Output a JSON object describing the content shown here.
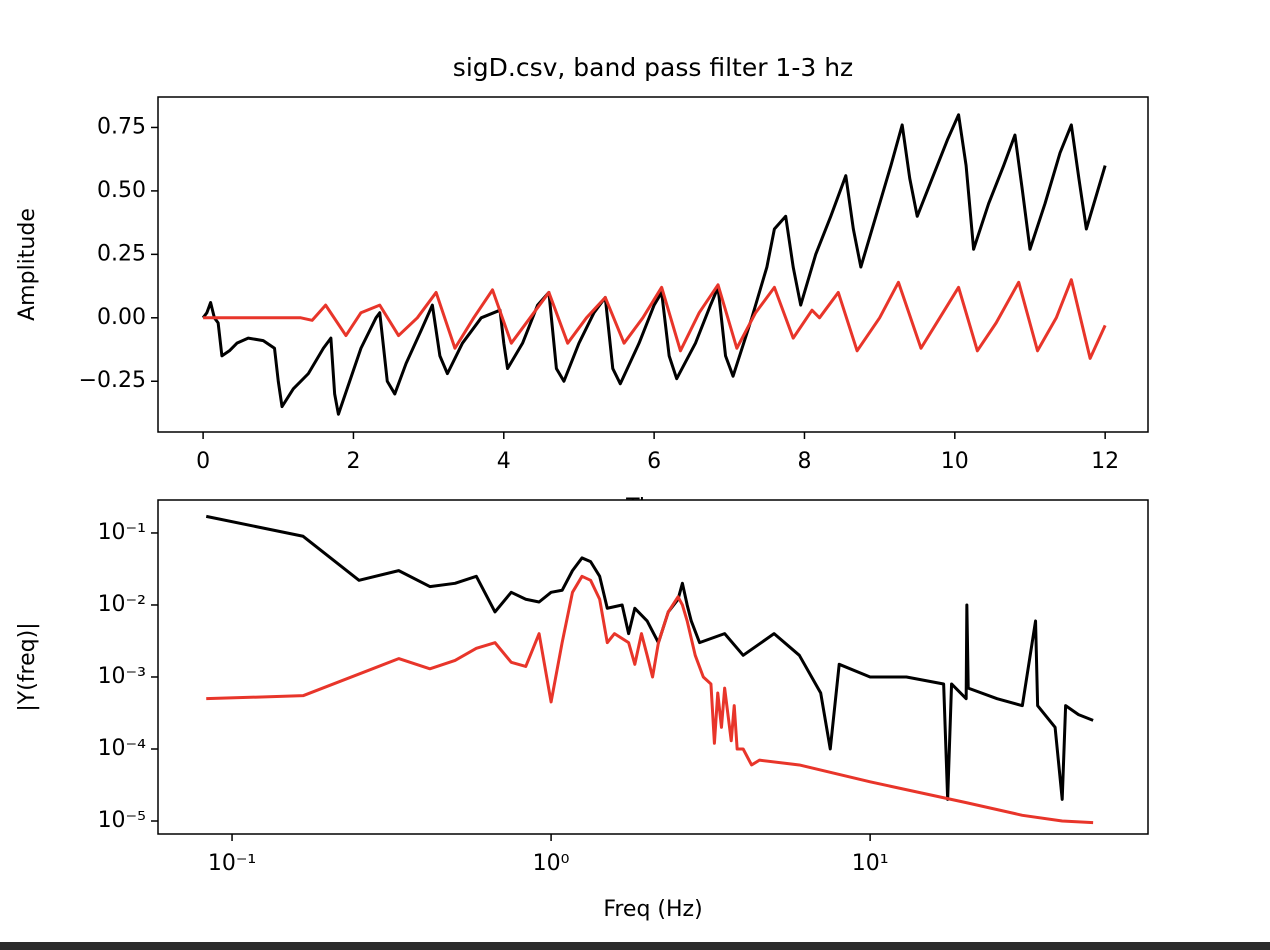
{
  "chart_data": [
    {
      "type": "line",
      "title": "sigD.csv, band pass filter 1-3 hz",
      "xlabel": "Time",
      "ylabel": "Amplitude",
      "xlim": [
        -0.6,
        12.57
      ],
      "ylim": [
        -0.45,
        0.87
      ],
      "xticks": [
        0,
        2,
        4,
        6,
        8,
        10,
        12
      ],
      "yticks": [
        {
          "value": -0.25,
          "label": "−0.25"
        },
        {
          "value": 0,
          "label": "0.00"
        },
        {
          "value": 0.25,
          "label": "0.25"
        },
        {
          "value": 0.5,
          "label": "0.50"
        },
        {
          "value": 0.75,
          "label": "0.75"
        }
      ],
      "series": [
        {
          "color": "#000000",
          "x": [
            0,
            0.05,
            0.1,
            0.15,
            0.2,
            0.25,
            0.35,
            0.45,
            0.6,
            0.8,
            0.95,
            1.0,
            1.05,
            1.2,
            1.4,
            1.6,
            1.7,
            1.75,
            1.8,
            1.95,
            2.1,
            2.3,
            2.35,
            2.45,
            2.55,
            2.7,
            2.9,
            3.05,
            3.15,
            3.25,
            3.45,
            3.7,
            3.95,
            4.0,
            4.05,
            4.25,
            4.45,
            4.6,
            4.7,
            4.8,
            5.0,
            5.2,
            5.35,
            5.45,
            5.55,
            5.8,
            6.0,
            6.1,
            6.2,
            6.3,
            6.55,
            6.75,
            6.85,
            6.95,
            7.05,
            7.3,
            7.5,
            7.6,
            7.75,
            7.85,
            7.95,
            8.15,
            8.35,
            8.55,
            8.65,
            8.75,
            8.95,
            9.15,
            9.3,
            9.4,
            9.5,
            9.7,
            9.9,
            10.05,
            10.15,
            10.25,
            10.45,
            10.65,
            10.8,
            10.9,
            11.0,
            11.2,
            11.4,
            11.55,
            11.65,
            11.75,
            11.9,
            12.0
          ],
          "values": [
            0,
            0.02,
            0.06,
            0,
            -0.02,
            -0.15,
            -0.13,
            -0.1,
            -0.08,
            -0.09,
            -0.12,
            -0.25,
            -0.35,
            -0.28,
            -0.22,
            -0.12,
            -0.08,
            -0.3,
            -0.38,
            -0.25,
            -0.12,
            0,
            0.02,
            -0.25,
            -0.3,
            -0.18,
            -0.05,
            0.05,
            -0.15,
            -0.22,
            -0.1,
            0,
            0.03,
            -0.1,
            -0.2,
            -0.1,
            0.05,
            0.1,
            -0.2,
            -0.25,
            -0.1,
            0.02,
            0.08,
            -0.2,
            -0.26,
            -0.1,
            0.05,
            0.1,
            -0.15,
            -0.24,
            -0.1,
            0.05,
            0.12,
            -0.15,
            -0.23,
            0,
            0.2,
            0.35,
            0.4,
            0.2,
            0.05,
            0.25,
            0.4,
            0.56,
            0.35,
            0.2,
            0.4,
            0.6,
            0.76,
            0.55,
            0.4,
            0.55,
            0.7,
            0.8,
            0.6,
            0.27,
            0.45,
            0.6,
            0.72,
            0.5,
            0.27,
            0.45,
            0.65,
            0.76,
            0.55,
            0.35,
            0.5,
            0.6
          ]
        },
        {
          "color": "#e8352a",
          "x": [
            0,
            1.3,
            1.45,
            1.63,
            1.9,
            2.1,
            2.35,
            2.6,
            2.85,
            3.1,
            3.35,
            3.6,
            3.85,
            4.1,
            4.35,
            4.6,
            4.85,
            5.1,
            5.35,
            5.6,
            5.85,
            6.1,
            6.35,
            6.6,
            6.85,
            7.1,
            7.35,
            7.6,
            7.85,
            8.1,
            8.2,
            8.45,
            8.7,
            9.0,
            9.25,
            9.55,
            9.8,
            10.05,
            10.3,
            10.55,
            10.85,
            11.1,
            11.35,
            11.55,
            11.8,
            12.0
          ],
          "values": [
            0,
            0,
            -0.01,
            0.05,
            -0.07,
            0.02,
            0.05,
            -0.07,
            0,
            0.1,
            -0.12,
            0,
            0.11,
            -0.1,
            0,
            0.1,
            -0.1,
            0,
            0.08,
            -0.1,
            0,
            0.12,
            -0.13,
            0.02,
            0.13,
            -0.12,
            0.02,
            0.12,
            -0.08,
            0.03,
            0,
            0.1,
            -0.13,
            0,
            0.14,
            -0.12,
            0,
            0.12,
            -0.13,
            -0.02,
            0.14,
            -0.13,
            0,
            0.15,
            -0.16,
            -0.03
          ]
        }
      ]
    },
    {
      "type": "line",
      "xlabel": "Freq (Hz)",
      "ylabel": "|Y(freq)|",
      "xscale": "log",
      "yscale": "log",
      "xlim": [
        0.0586,
        74.3
      ],
      "ylim": [
        6.6e-06,
        0.287
      ],
      "xticks": [
        {
          "value": 0.1,
          "label": "10⁻¹"
        },
        {
          "value": 1,
          "label": "10⁰"
        },
        {
          "value": 10,
          "label": "10¹"
        }
      ],
      "yticks": [
        {
          "value": 1e-05,
          "label": "10⁻⁵"
        },
        {
          "value": 0.0001,
          "label": "10⁻⁴"
        },
        {
          "value": 0.001,
          "label": "10⁻³"
        },
        {
          "value": 0.01,
          "label": "10⁻²"
        },
        {
          "value": 0.1,
          "label": "10⁻¹"
        }
      ],
      "series": [
        {
          "color": "#000000",
          "x": [
            0.083,
            0.167,
            0.25,
            0.333,
            0.417,
            0.5,
            0.583,
            0.667,
            0.75,
            0.833,
            0.917,
            1.0,
            1.083,
            1.167,
            1.25,
            1.33,
            1.42,
            1.5,
            1.67,
            1.75,
            1.83,
            2.0,
            2.17,
            2.33,
            2.5,
            2.58,
            2.67,
            2.75,
            2.92,
            3.5,
            4,
            5,
            6,
            7,
            7.5,
            8,
            10,
            13,
            17,
            17.5,
            18,
            20,
            20.1,
            20.3,
            25,
            30,
            33,
            33.5,
            38,
            40,
            41,
            45,
            50
          ],
          "values": [
            0.17,
            0.09,
            0.022,
            0.03,
            0.018,
            0.02,
            0.025,
            0.008,
            0.015,
            0.012,
            0.011,
            0.015,
            0.016,
            0.03,
            0.045,
            0.04,
            0.025,
            0.009,
            0.01,
            0.004,
            0.009,
            0.006,
            0.003,
            0.008,
            0.012,
            0.02,
            0.01,
            0.006,
            0.003,
            0.004,
            0.002,
            0.004,
            0.002,
            0.0006,
            0.0001,
            0.0015,
            0.001,
            0.001,
            0.0008,
            2e-05,
            0.0008,
            0.0005,
            0.01,
            0.0007,
            0.0005,
            0.0004,
            0.006,
            0.0004,
            0.0002,
            2e-05,
            0.0004,
            0.0003,
            0.00025
          ]
        },
        {
          "color": "#e8352a",
          "x": [
            0.083,
            0.167,
            0.333,
            0.417,
            0.5,
            0.583,
            0.667,
            0.75,
            0.833,
            0.917,
            1.0,
            1.083,
            1.167,
            1.25,
            1.33,
            1.42,
            1.5,
            1.58,
            1.75,
            1.83,
            1.92,
            2.0,
            2.08,
            2.17,
            2.33,
            2.5,
            2.58,
            2.67,
            2.83,
            3.0,
            3.17,
            3.25,
            3.33,
            3.42,
            3.5,
            3.67,
            3.75,
            3.83,
            4.0,
            4.25,
            4.5,
            6,
            10,
            20,
            30,
            40,
            50
          ],
          "values": [
            0.0005,
            0.00055,
            0.0018,
            0.0013,
            0.0017,
            0.0025,
            0.003,
            0.0016,
            0.0014,
            0.004,
            0.00045,
            0.003,
            0.015,
            0.025,
            0.022,
            0.012,
            0.003,
            0.004,
            0.003,
            0.0015,
            0.004,
            0.002,
            0.001,
            0.003,
            0.008,
            0.013,
            0.01,
            0.006,
            0.002,
            0.001,
            0.0008,
            0.00012,
            0.0006,
            0.0002,
            0.0007,
            0.00013,
            0.0004,
            0.0001,
            0.0001,
            6e-05,
            7e-05,
            6e-05,
            3.5e-05,
            1.8e-05,
            1.2e-05,
            1e-05,
            9.5e-06
          ]
        }
      ]
    }
  ]
}
